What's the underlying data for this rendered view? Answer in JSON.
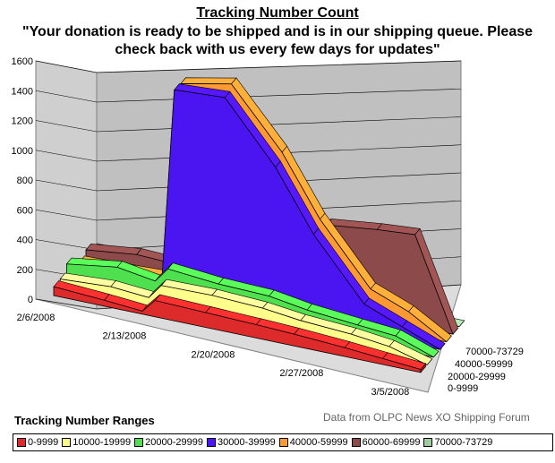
{
  "chart_data": {
    "type": "area",
    "subtype": "3d-area",
    "title": "Tracking Number Count",
    "subtitle": "\"Your donation is ready to be shipped and is in our shipping queue. Please check back with us every few days for updates\"",
    "source_note": "Data from OLPC News XO Shipping Forum",
    "legend_title": "Tracking Number Ranges",
    "legend_position": "bottom",
    "grid": true,
    "y_ticks": [
      "0",
      "200",
      "400",
      "600",
      "800",
      "1000",
      "1200",
      "1400",
      "1600"
    ],
    "ylim": [
      0,
      1600
    ],
    "x_tick_labels": [
      "2/6/2008",
      "2/13/2008",
      "2/20/2008",
      "2/27/2008",
      "3/5/2008"
    ],
    "depth_labels": [
      "0-9999",
      "20000-29999",
      "40000-59999",
      "70000-73729"
    ],
    "x": [
      "2/6/2008",
      "2/10/2008",
      "2/13/2008",
      "2/14/2008",
      "2/18/2008",
      "2/22/2008",
      "2/25/2008",
      "2/29/2008",
      "3/3/2008",
      "3/6/2008"
    ],
    "series": [
      {
        "name": "0-9999",
        "color": "#dd2a2a",
        "values": [
          60,
          40,
          20,
          110,
          100,
          90,
          80,
          60,
          40,
          20
        ]
      },
      {
        "name": "10000-19999",
        "color": "#ffff8c",
        "values": [
          60,
          80,
          60,
          160,
          165,
          150,
          120,
          100,
          70,
          0
        ]
      },
      {
        "name": "20000-29999",
        "color": "#4ee04e",
        "values": [
          110,
          160,
          120,
          220,
          190,
          180,
          140,
          110,
          90,
          0
        ]
      },
      {
        "name": "30000-39999",
        "color": "#4a15f0",
        "values": [
          30,
          55,
          50,
          1380,
          1400,
          1000,
          600,
          200,
          100,
          0
        ]
      },
      {
        "name": "40000-59999",
        "color": "#ff9933",
        "values": [
          20,
          30,
          40,
          1370,
          1440,
          1050,
          650,
          250,
          150,
          0
        ]
      },
      {
        "name": "60000-69999",
        "color": "#8c4a4a",
        "values": [
          50,
          90,
          80,
          100,
          150,
          380,
          560,
          600,
          620,
          0
        ]
      },
      {
        "name": "70000-73729",
        "color": "#a0cca0",
        "values": [
          0,
          0,
          0,
          0,
          0,
          0,
          0,
          0,
          0,
          0
        ]
      }
    ]
  }
}
